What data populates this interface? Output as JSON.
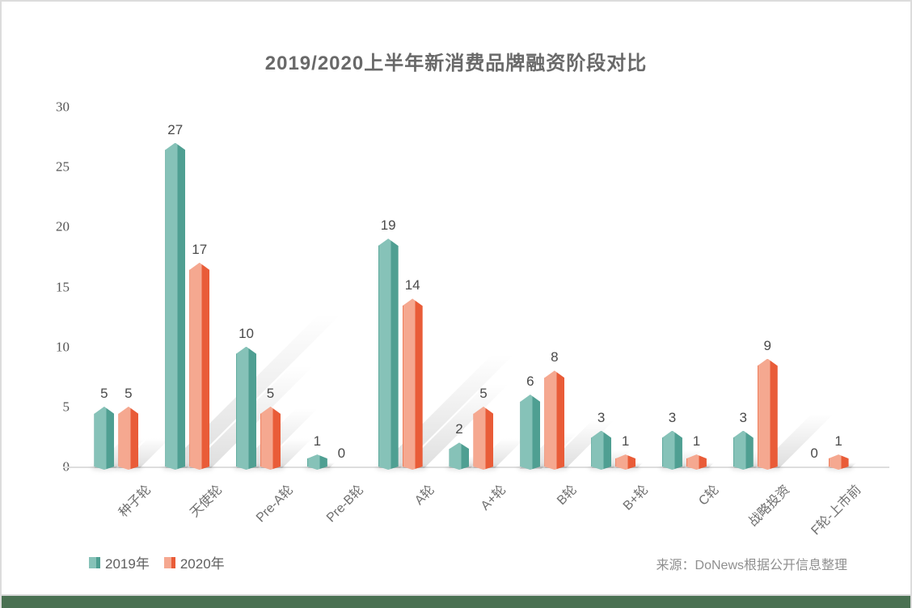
{
  "source": {
    "text": "来源：DoNews根据公开信息整理"
  },
  "footer": {
    "bar_color": "#4a7152"
  },
  "chart_data": {
    "type": "bar",
    "title": "2019/2020上半年新消费品牌融资阶段对比",
    "categories": [
      "种子轮",
      "天使轮",
      "Pre-A轮",
      "Pre-B轮",
      "A轮",
      "A+轮",
      "B轮",
      "B+轮",
      "C轮",
      "战略投资",
      "F轮-上市前"
    ],
    "series": [
      {
        "name": "2019年",
        "color_light": "#86c2b8",
        "color_dark": "#4f9f92",
        "color_edge": "#5faa9d",
        "values": [
          5,
          27,
          10,
          1,
          19,
          2,
          6,
          3,
          3,
          3,
          0
        ]
      },
      {
        "name": "2020年",
        "color_light": "#f5a890",
        "color_dark": "#e95c38",
        "color_edge": "#ef7e5c",
        "values": [
          5,
          17,
          5,
          0,
          14,
          5,
          8,
          1,
          1,
          9,
          1
        ]
      }
    ],
    "yticks": [
      0,
      5,
      10,
      15,
      20,
      25,
      30
    ],
    "ylim": [
      0,
      30
    ],
    "grid": false,
    "legend_position": "bottom-left",
    "value_labels": true
  }
}
